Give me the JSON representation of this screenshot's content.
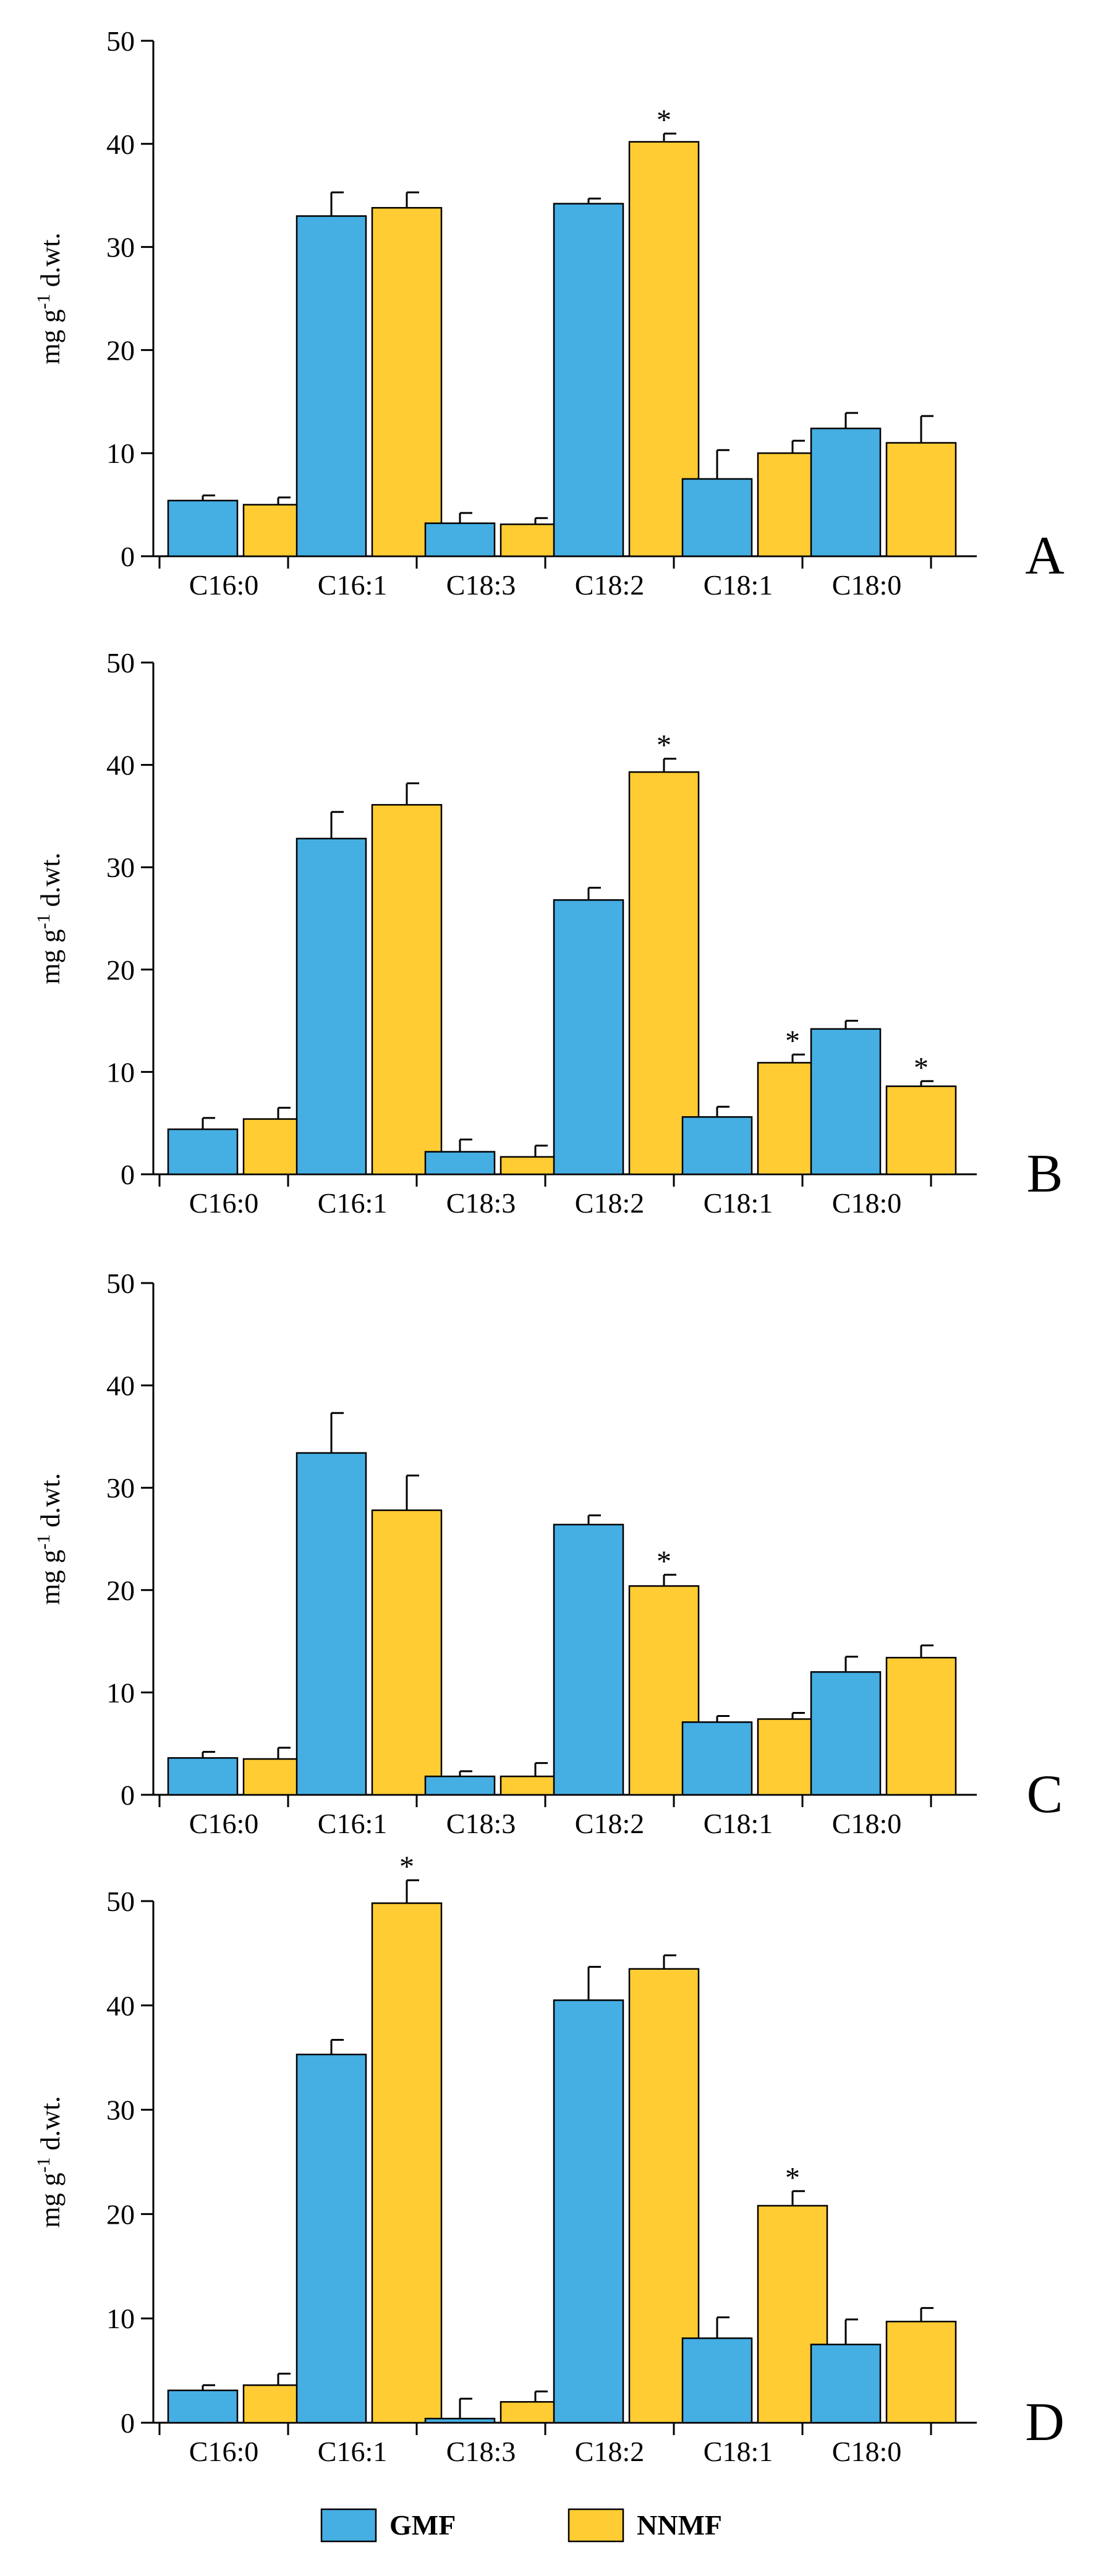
{
  "chart_data": [
    {
      "type": "bar",
      "panel": "A",
      "ylabel": "mg g-1 d.wt.",
      "ylim": [
        0,
        50
      ],
      "yticks": [
        0,
        10,
        20,
        30,
        40,
        50
      ],
      "categories": [
        "C16:0",
        "C16:1",
        "C18:3",
        "C18:2",
        "C18:1",
        "C18:0"
      ],
      "series": [
        {
          "name": "GMF",
          "values": [
            5.4,
            33.0,
            3.2,
            34.2,
            7.5,
            12.4
          ],
          "errors": [
            0.5,
            2.3,
            1.0,
            0.5,
            2.8,
            1.5
          ]
        },
        {
          "name": "NNMF",
          "values": [
            5.0,
            33.8,
            3.1,
            40.2,
            10.0,
            11.0
          ],
          "errors": [
            0.7,
            1.5,
            0.6,
            0.8,
            1.2,
            2.6
          ]
        }
      ],
      "significance": [
        {
          "series": "NNMF",
          "category": "C18:2",
          "mark": "*"
        }
      ]
    },
    {
      "type": "bar",
      "panel": "B",
      "ylabel": "mg g-1 d.wt.",
      "ylim": [
        0,
        50
      ],
      "yticks": [
        0,
        10,
        20,
        30,
        40,
        50
      ],
      "categories": [
        "C16:0",
        "C16:1",
        "C18:3",
        "C18:2",
        "C18:1",
        "C18:0"
      ],
      "series": [
        {
          "name": "GMF",
          "values": [
            4.4,
            32.8,
            2.2,
            26.8,
            5.6,
            14.2
          ],
          "errors": [
            1.1,
            2.6,
            1.2,
            1.2,
            1.0,
            0.8
          ]
        },
        {
          "name": "NNMF",
          "values": [
            5.4,
            36.1,
            1.7,
            39.3,
            10.9,
            8.6
          ],
          "errors": [
            1.1,
            2.1,
            1.1,
            1.3,
            0.8,
            0.5
          ]
        }
      ],
      "significance": [
        {
          "series": "NNMF",
          "category": "C18:2",
          "mark": "*"
        },
        {
          "series": "NNMF",
          "category": "C18:1",
          "mark": "*"
        },
        {
          "series": "NNMF",
          "category": "C18:0",
          "mark": "*"
        }
      ]
    },
    {
      "type": "bar",
      "panel": "C",
      "ylabel": "mg g-1 d.wt.",
      "ylim": [
        0,
        50
      ],
      "yticks": [
        0,
        10,
        20,
        30,
        40,
        50
      ],
      "categories": [
        "C16:0",
        "C16:1",
        "C18:3",
        "C18:2",
        "C18:1",
        "C18:0"
      ],
      "series": [
        {
          "name": "GMF",
          "values": [
            3.6,
            33.4,
            1.8,
            26.4,
            7.1,
            12.0
          ],
          "errors": [
            0.6,
            3.9,
            0.5,
            0.9,
            0.6,
            1.5
          ]
        },
        {
          "name": "NNMF",
          "values": [
            3.5,
            27.8,
            1.8,
            20.4,
            7.4,
            13.4
          ],
          "errors": [
            1.1,
            3.4,
            1.3,
            1.1,
            0.6,
            1.2
          ]
        }
      ],
      "significance": [
        {
          "series": "NNMF",
          "category": "C18:2",
          "mark": "*"
        }
      ]
    },
    {
      "type": "bar",
      "panel": "D",
      "ylabel": "mg g-1 d.wt.",
      "ylim": [
        0,
        50
      ],
      "yticks": [
        0,
        10,
        20,
        30,
        40,
        50
      ],
      "categories": [
        "C16:0",
        "C16:1",
        "C18:3",
        "C18:2",
        "C18:1",
        "C18:0"
      ],
      "series": [
        {
          "name": "GMF",
          "values": [
            3.1,
            35.3,
            0.4,
            40.5,
            8.1,
            7.5
          ],
          "errors": [
            0.5,
            1.4,
            1.9,
            3.2,
            2.0,
            2.4
          ]
        },
        {
          "name": "NNMF",
          "values": [
            3.6,
            49.8,
            2.0,
            43.5,
            20.8,
            9.7
          ],
          "errors": [
            1.1,
            2.2,
            1.0,
            1.3,
            1.4,
            1.3
          ]
        }
      ],
      "significance": [
        {
          "series": "NNMF",
          "category": "C16:1",
          "mark": "*"
        },
        {
          "series": "NNMF",
          "category": "C18:1",
          "mark": "*"
        }
      ]
    }
  ],
  "legend": [
    {
      "name": "GMF",
      "color": "#45aee3"
    },
    {
      "name": "NNMF",
      "color": "#ffcc33"
    }
  ],
  "colors": {
    "GMF": "#45aee3",
    "NNMF": "#ffcc33",
    "axis": "#000000"
  }
}
